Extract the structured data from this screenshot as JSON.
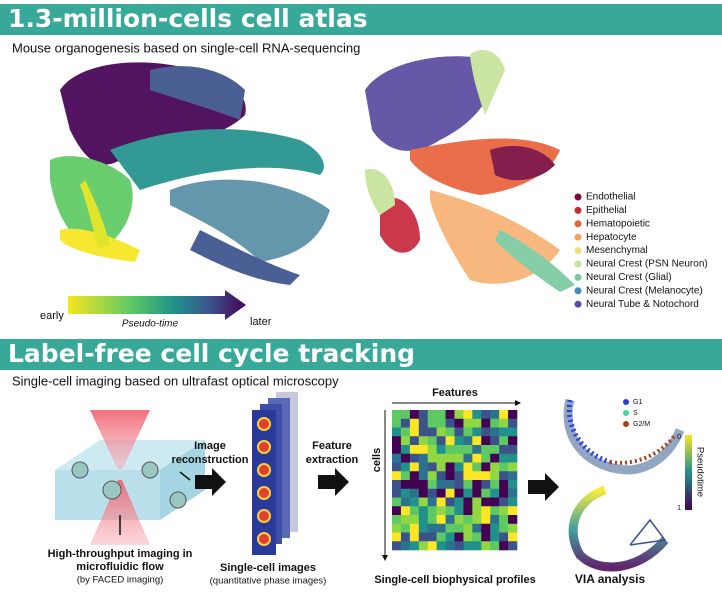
{
  "section1": {
    "title": "1.3-million-cells cell atlas",
    "subtitle": "Mouse organogenesis based on single-cell RNA-sequencing",
    "legend": [
      {
        "label": "Endothelial",
        "color": "#7a0b3e"
      },
      {
        "label": "Epithelial",
        "color": "#c8283c"
      },
      {
        "label": "Hematopoietic",
        "color": "#e8623a"
      },
      {
        "label": "Hepatocyte",
        "color": "#f5a25a"
      },
      {
        "label": "Mesenchymal",
        "color": "#f3de8a"
      },
      {
        "label": "Neural Crest (PSN Neuron)",
        "color": "#c6e39a"
      },
      {
        "label": "Neural Crest (Glial)",
        "color": "#7ccaa0"
      },
      {
        "label": "Neural Crest (Melanocyte)",
        "color": "#3f8fb8"
      },
      {
        "label": "Neural Tube & Notochord",
        "color": "#5a4aa0"
      }
    ],
    "pseudotime": {
      "start": "early",
      "label": "Pseudo-time",
      "end": "later"
    }
  },
  "section2": {
    "title": "Label-free cell cycle tracking",
    "subtitle": "Single-cell imaging based on ultrafast optical microscopy",
    "step1": {
      "title_lines": [
        "High-throughput imaging in",
        "microfluidic flow"
      ],
      "note": "(by FACED imaging)"
    },
    "arrow1": [
      "Image",
      "reconstruction"
    ],
    "step2": {
      "title": "Single-cell images",
      "note": "(quantitative phase images)"
    },
    "arrow2": [
      "Feature",
      "extraction"
    ],
    "step3": {
      "title": "Single-cell biophysical profiles",
      "columns": "Features",
      "rows": "cells"
    },
    "step4": {
      "title": "VIA analysis",
      "legend": [
        {
          "label": "G1",
          "color": "#2a3fd8"
        },
        {
          "label": "S",
          "color": "#3fd8a0"
        },
        {
          "label": "G2/M",
          "color": "#a0441a"
        }
      ],
      "colorbar": {
        "label": "Pseudotime",
        "min": "0",
        "max": "1"
      }
    }
  }
}
